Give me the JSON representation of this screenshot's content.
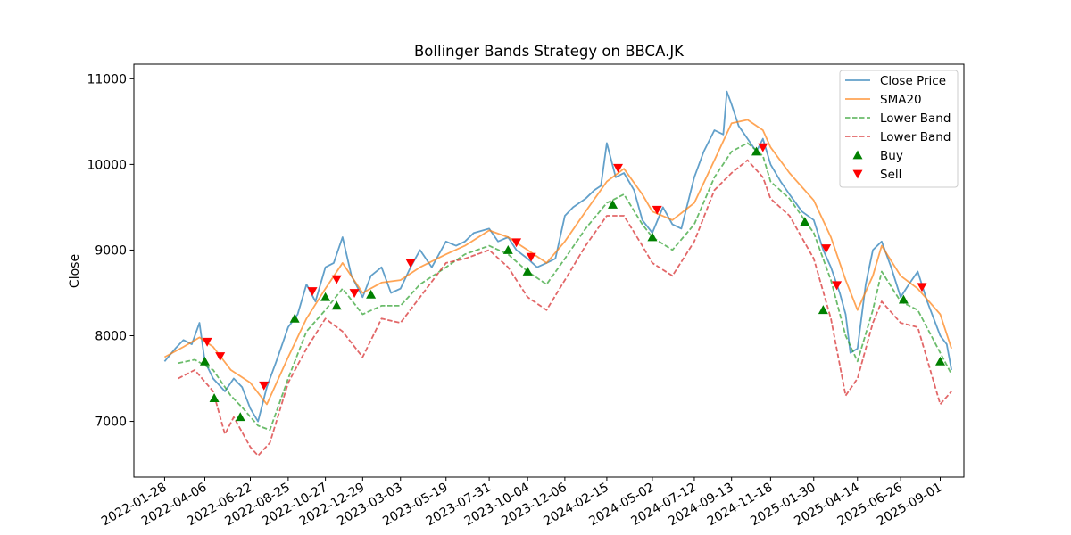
{
  "chart_data": {
    "type": "line",
    "title": "Bollinger Bands Strategy on BBCA.JK",
    "xlabel": "",
    "ylabel": "Close",
    "ylim": [
      6350,
      11170
    ],
    "yticks": [
      7000,
      8000,
      9000,
      10000,
      11000
    ],
    "xlim": [
      "2021-12-07",
      "2025-10-11"
    ],
    "xticks": [
      "2022-01-28",
      "2022-04-06",
      "2022-06-22",
      "2022-08-25",
      "2022-10-27",
      "2022-12-29",
      "2023-03-03",
      "2023-05-19",
      "2023-07-31",
      "2023-10-04",
      "2023-12-06",
      "2024-02-15",
      "2024-05-02",
      "2024-07-12",
      "2024-09-13",
      "2024-11-18",
      "2025-01-30",
      "2025-04-14",
      "2025-06-26",
      "2025-09-01"
    ],
    "grid": false,
    "legend_position": "top-right",
    "colors": {
      "close": "#1f77b4",
      "sma": "#ff7f0e",
      "lower_green": "#2ca02c",
      "lower_red": "#d62728",
      "buy": "#008000",
      "sell": "#ff0000"
    },
    "legend": [
      "Close Price",
      "SMA20",
      "Lower Band",
      "Lower Band",
      "Buy",
      "Sell"
    ],
    "series": [
      {
        "name": "Close Price",
        "style": "solid",
        "points": [
          [
            "2022-01-28",
            7700
          ],
          [
            "2022-02-15",
            7850
          ],
          [
            "2022-03-01",
            7950
          ],
          [
            "2022-03-15",
            7900
          ],
          [
            "2022-03-28",
            8150
          ],
          [
            "2022-04-06",
            7700
          ],
          [
            "2022-04-20",
            7500
          ],
          [
            "2022-05-10",
            7350
          ],
          [
            "2022-05-25",
            7500
          ],
          [
            "2022-06-08",
            7400
          ],
          [
            "2022-06-22",
            7150
          ],
          [
            "2022-07-05",
            7000
          ],
          [
            "2022-07-20",
            7400
          ],
          [
            "2022-08-05",
            7700
          ],
          [
            "2022-08-25",
            8100
          ],
          [
            "2022-09-10",
            8250
          ],
          [
            "2022-09-25",
            8600
          ],
          [
            "2022-10-10",
            8400
          ],
          [
            "2022-10-27",
            8800
          ],
          [
            "2022-11-10",
            8850
          ],
          [
            "2022-11-25",
            9150
          ],
          [
            "2022-12-10",
            8700
          ],
          [
            "2022-12-29",
            8450
          ],
          [
            "2023-01-12",
            8700
          ],
          [
            "2023-01-30",
            8800
          ],
          [
            "2023-02-15",
            8500
          ],
          [
            "2023-03-03",
            8550
          ],
          [
            "2023-03-20",
            8800
          ],
          [
            "2023-04-05",
            9000
          ],
          [
            "2023-04-25",
            8800
          ],
          [
            "2023-05-19",
            9100
          ],
          [
            "2023-06-05",
            9050
          ],
          [
            "2023-06-20",
            9100
          ],
          [
            "2023-07-05",
            9200
          ],
          [
            "2023-07-31",
            9250
          ],
          [
            "2023-08-15",
            9100
          ],
          [
            "2023-09-01",
            9150
          ],
          [
            "2023-09-15",
            9000
          ],
          [
            "2023-10-04",
            8900
          ],
          [
            "2023-10-20",
            8800
          ],
          [
            "2023-11-05",
            8850
          ],
          [
            "2023-11-20",
            8900
          ],
          [
            "2023-12-06",
            9400
          ],
          [
            "2023-12-20",
            9500
          ],
          [
            "2024-01-10",
            9600
          ],
          [
            "2024-01-25",
            9700
          ],
          [
            "2024-02-05",
            9750
          ],
          [
            "2024-02-15",
            10250
          ],
          [
            "2024-03-01",
            9850
          ],
          [
            "2024-03-15",
            9900
          ],
          [
            "2024-04-01",
            9700
          ],
          [
            "2024-04-15",
            9350
          ],
          [
            "2024-05-02",
            9200
          ],
          [
            "2024-05-20",
            9500
          ],
          [
            "2024-06-05",
            9300
          ],
          [
            "2024-06-20",
            9250
          ],
          [
            "2024-07-12",
            9850
          ],
          [
            "2024-07-28",
            10150
          ],
          [
            "2024-08-15",
            10400
          ],
          [
            "2024-08-30",
            10350
          ],
          [
            "2024-09-05",
            10850
          ],
          [
            "2024-09-13",
            10700
          ],
          [
            "2024-09-25",
            10450
          ],
          [
            "2024-10-10",
            10300
          ],
          [
            "2024-10-25",
            10150
          ],
          [
            "2024-11-05",
            10300
          ],
          [
            "2024-11-18",
            10000
          ],
          [
            "2024-12-05",
            9800
          ],
          [
            "2024-12-20",
            9650
          ],
          [
            "2025-01-10",
            9450
          ],
          [
            "2025-01-30",
            9350
          ],
          [
            "2025-02-15",
            9000
          ],
          [
            "2025-02-28",
            8800
          ],
          [
            "2025-03-15",
            8500
          ],
          [
            "2025-03-25",
            8250
          ],
          [
            "2025-04-02",
            7800
          ],
          [
            "2025-04-14",
            7850
          ],
          [
            "2025-04-28",
            8600
          ],
          [
            "2025-05-10",
            9000
          ],
          [
            "2025-05-25",
            9100
          ],
          [
            "2025-06-10",
            8800
          ],
          [
            "2025-06-26",
            8450
          ],
          [
            "2025-07-10",
            8600
          ],
          [
            "2025-07-25",
            8750
          ],
          [
            "2025-08-10",
            8400
          ],
          [
            "2025-09-01",
            8000
          ],
          [
            "2025-09-12",
            7900
          ],
          [
            "2025-09-20",
            7600
          ]
        ]
      },
      {
        "name": "SMA20",
        "style": "solid",
        "points": [
          [
            "2022-01-28",
            7750
          ],
          [
            "2022-03-01",
            7870
          ],
          [
            "2022-03-28",
            7980
          ],
          [
            "2022-04-20",
            7870
          ],
          [
            "2022-05-20",
            7600
          ],
          [
            "2022-06-22",
            7450
          ],
          [
            "2022-07-20",
            7200
          ],
          [
            "2022-08-25",
            7750
          ],
          [
            "2022-09-25",
            8200
          ],
          [
            "2022-10-27",
            8550
          ],
          [
            "2022-11-25",
            8850
          ],
          [
            "2022-12-29",
            8500
          ],
          [
            "2023-01-30",
            8620
          ],
          [
            "2023-03-03",
            8650
          ],
          [
            "2023-04-05",
            8800
          ],
          [
            "2023-05-19",
            8950
          ],
          [
            "2023-06-20",
            9050
          ],
          [
            "2023-07-31",
            9230
          ],
          [
            "2023-09-01",
            9150
          ],
          [
            "2023-10-04",
            9000
          ],
          [
            "2023-11-05",
            8850
          ],
          [
            "2023-12-06",
            9100
          ],
          [
            "2024-01-10",
            9450
          ],
          [
            "2024-02-15",
            9800
          ],
          [
            "2024-03-15",
            9950
          ],
          [
            "2024-04-15",
            9650
          ],
          [
            "2024-05-02",
            9450
          ],
          [
            "2024-06-05",
            9350
          ],
          [
            "2024-07-12",
            9550
          ],
          [
            "2024-08-15",
            10050
          ],
          [
            "2024-09-13",
            10480
          ],
          [
            "2024-10-10",
            10520
          ],
          [
            "2024-11-05",
            10400
          ],
          [
            "2024-11-18",
            10200
          ],
          [
            "2024-12-20",
            9900
          ],
          [
            "2025-01-30",
            9580
          ],
          [
            "2025-02-28",
            9150
          ],
          [
            "2025-03-25",
            8650
          ],
          [
            "2025-04-14",
            8300
          ],
          [
            "2025-05-10",
            8700
          ],
          [
            "2025-05-25",
            9050
          ],
          [
            "2025-06-26",
            8700
          ],
          [
            "2025-07-25",
            8550
          ],
          [
            "2025-09-01",
            8250
          ],
          [
            "2025-09-20",
            7850
          ]
        ]
      },
      {
        "name": "Lower Band",
        "style": "dashed",
        "color_key": "lower_green",
        "points": [
          [
            "2022-02-20",
            7680
          ],
          [
            "2022-03-20",
            7720
          ],
          [
            "2022-04-20",
            7600
          ],
          [
            "2022-05-20",
            7300
          ],
          [
            "2022-06-10",
            7150
          ],
          [
            "2022-07-05",
            6950
          ],
          [
            "2022-07-25",
            6900
          ],
          [
            "2022-08-25",
            7500
          ],
          [
            "2022-09-25",
            8050
          ],
          [
            "2022-10-27",
            8300
          ],
          [
            "2022-11-25",
            8550
          ],
          [
            "2022-12-29",
            8250
          ],
          [
            "2023-01-30",
            8350
          ],
          [
            "2023-03-03",
            8350
          ],
          [
            "2023-04-05",
            8600
          ],
          [
            "2023-05-19",
            8800
          ],
          [
            "2023-06-20",
            8950
          ],
          [
            "2023-07-31",
            9050
          ],
          [
            "2023-09-01",
            8950
          ],
          [
            "2023-10-04",
            8750
          ],
          [
            "2023-11-05",
            8600
          ],
          [
            "2023-12-06",
            8900
          ],
          [
            "2024-01-10",
            9250
          ],
          [
            "2024-02-15",
            9550
          ],
          [
            "2024-03-15",
            9650
          ],
          [
            "2024-04-15",
            9300
          ],
          [
            "2024-05-02",
            9150
          ],
          [
            "2024-06-05",
            9000
          ],
          [
            "2024-07-12",
            9300
          ],
          [
            "2024-08-15",
            9850
          ],
          [
            "2024-09-13",
            10150
          ],
          [
            "2024-10-10",
            10250
          ],
          [
            "2024-11-05",
            10100
          ],
          [
            "2024-11-18",
            9800
          ],
          [
            "2024-12-20",
            9600
          ],
          [
            "2025-01-30",
            9200
          ],
          [
            "2025-02-28",
            8650
          ],
          [
            "2025-03-25",
            8000
          ],
          [
            "2025-04-14",
            7700
          ],
          [
            "2025-05-10",
            8300
          ],
          [
            "2025-05-25",
            8750
          ],
          [
            "2025-06-26",
            8400
          ],
          [
            "2025-07-25",
            8300
          ],
          [
            "2025-09-01",
            7800
          ],
          [
            "2025-09-20",
            7550
          ]
        ]
      },
      {
        "name": "Lower Band",
        "style": "dashed",
        "color_key": "lower_red",
        "points": [
          [
            "2022-02-20",
            7500
          ],
          [
            "2022-03-20",
            7600
          ],
          [
            "2022-04-20",
            7350
          ],
          [
            "2022-05-10",
            6850
          ],
          [
            "2022-05-25",
            7050
          ],
          [
            "2022-06-22",
            6700
          ],
          [
            "2022-07-05",
            6600
          ],
          [
            "2022-07-25",
            6750
          ],
          [
            "2022-08-25",
            7450
          ],
          [
            "2022-09-25",
            7850
          ],
          [
            "2022-10-27",
            8200
          ],
          [
            "2022-11-25",
            8050
          ],
          [
            "2022-12-29",
            7750
          ],
          [
            "2023-01-30",
            8200
          ],
          [
            "2023-03-03",
            8150
          ],
          [
            "2023-04-05",
            8450
          ],
          [
            "2023-05-19",
            8850
          ],
          [
            "2023-06-20",
            8900
          ],
          [
            "2023-07-31",
            9000
          ],
          [
            "2023-09-01",
            8800
          ],
          [
            "2023-10-04",
            8450
          ],
          [
            "2023-11-05",
            8300
          ],
          [
            "2023-12-06",
            8650
          ],
          [
            "2024-01-10",
            9050
          ],
          [
            "2024-02-15",
            9400
          ],
          [
            "2024-03-15",
            9400
          ],
          [
            "2024-04-15",
            9050
          ],
          [
            "2024-05-02",
            8850
          ],
          [
            "2024-06-05",
            8700
          ],
          [
            "2024-07-12",
            9100
          ],
          [
            "2024-08-15",
            9700
          ],
          [
            "2024-09-13",
            9900
          ],
          [
            "2024-10-10",
            10050
          ],
          [
            "2024-11-05",
            9850
          ],
          [
            "2024-11-18",
            9600
          ],
          [
            "2024-12-20",
            9400
          ],
          [
            "2025-01-30",
            8900
          ],
          [
            "2025-02-28",
            8200
          ],
          [
            "2025-03-25",
            7300
          ],
          [
            "2025-04-14",
            7500
          ],
          [
            "2025-05-10",
            8150
          ],
          [
            "2025-05-25",
            8400
          ],
          [
            "2025-06-26",
            8150
          ],
          [
            "2025-07-25",
            8100
          ],
          [
            "2025-09-01",
            7200
          ],
          [
            "2025-09-20",
            7350
          ]
        ]
      }
    ],
    "buy": [
      [
        "2022-04-06",
        7700
      ],
      [
        "2022-04-22",
        7270
      ],
      [
        "2022-06-05",
        7050
      ],
      [
        "2022-09-05",
        8200
      ],
      [
        "2022-10-27",
        8450
      ],
      [
        "2022-11-15",
        8350
      ],
      [
        "2023-01-12",
        8480
      ],
      [
        "2023-09-01",
        9000
      ],
      [
        "2023-10-04",
        8750
      ],
      [
        "2024-02-25",
        9530
      ],
      [
        "2024-05-02",
        9150
      ],
      [
        "2024-10-25",
        10150
      ],
      [
        "2025-01-15",
        9330
      ],
      [
        "2025-02-15",
        8300
      ],
      [
        "2025-07-01",
        8420
      ],
      [
        "2025-09-01",
        7700
      ]
    ],
    "sell": [
      [
        "2022-04-10",
        7930
      ],
      [
        "2022-05-02",
        7760
      ],
      [
        "2022-07-15",
        7420
      ],
      [
        "2022-10-05",
        8520
      ],
      [
        "2022-11-15",
        8660
      ],
      [
        "2022-12-15",
        8500
      ],
      [
        "2023-03-20",
        8850
      ],
      [
        "2023-09-15",
        9090
      ],
      [
        "2023-10-10",
        8920
      ],
      [
        "2024-03-05",
        9960
      ],
      [
        "2024-05-10",
        9470
      ],
      [
        "2024-11-05",
        10200
      ],
      [
        "2025-02-20",
        9020
      ],
      [
        "2025-03-10",
        8590
      ],
      [
        "2025-08-01",
        8570
      ]
    ]
  }
}
